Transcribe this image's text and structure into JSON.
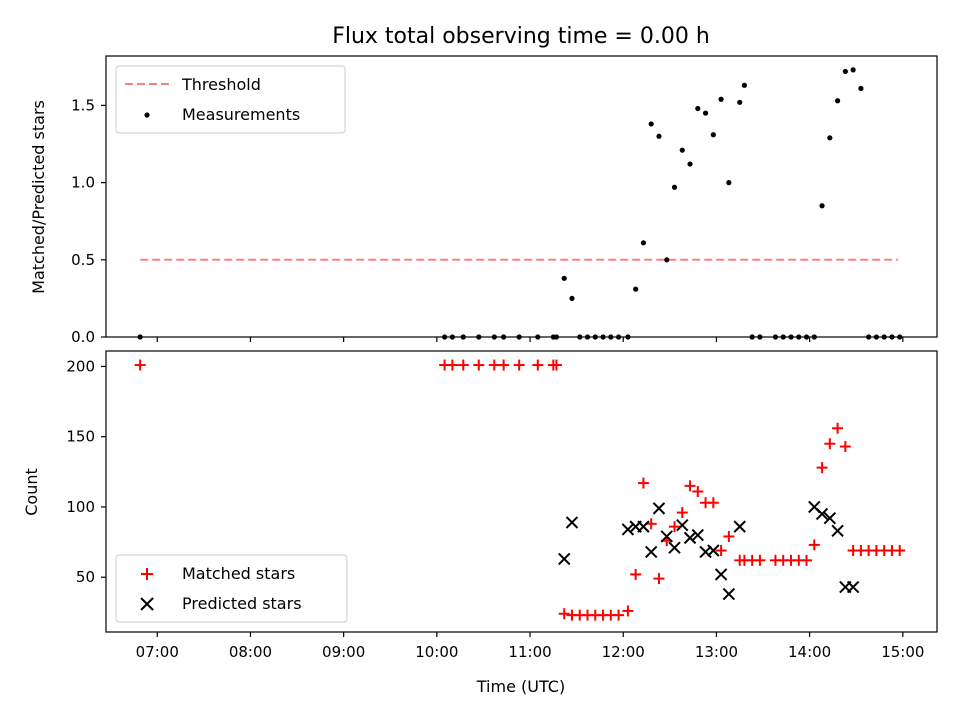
{
  "chart_data": [
    {
      "type": "scatter",
      "title": "Flux total observing time = 0.00 h",
      "ylabel": "Matched/Predicted stars",
      "xlabel": "",
      "xlim": [
        "06:27",
        "15:22"
      ],
      "ylim": [
        0,
        1.82
      ],
      "yticks": [
        0.0,
        0.5,
        1.0,
        1.5
      ],
      "ytick_labels": [
        "0.0",
        "0.5",
        "1.0",
        "1.5"
      ],
      "grid": false,
      "legend_position": "top-left",
      "legend": [
        "Threshold",
        "Measurements"
      ],
      "threshold": {
        "name": "Threshold",
        "x": [
          "06:49",
          "14:57"
        ],
        "y": 0.5,
        "color": "#ff7f7f",
        "style": "dashed"
      },
      "series": [
        {
          "name": "Measurements",
          "marker": "dot",
          "color": "#000000",
          "x": [
            "06:49",
            "10:05",
            "10:10",
            "10:17",
            "10:27",
            "10:37",
            "10:43",
            "10:53",
            "11:05",
            "11:15",
            "11:17",
            "11:22",
            "11:27",
            "11:32",
            "11:37",
            "11:42",
            "11:47",
            "11:52",
            "11:57",
            "12:03",
            "12:08",
            "12:13",
            "12:18",
            "12:23",
            "12:28",
            "12:33",
            "12:38",
            "12:43",
            "12:48",
            "12:53",
            "12:58",
            "13:03",
            "13:08",
            "13:15",
            "13:18",
            "13:23",
            "13:28",
            "13:38",
            "13:43",
            "13:48",
            "13:53",
            "13:58",
            "14:03",
            "14:08",
            "14:13",
            "14:18",
            "14:23",
            "14:28",
            "14:33",
            "14:38",
            "14:43",
            "14:48",
            "14:53",
            "14:58"
          ],
          "y": [
            0,
            0,
            0,
            0,
            0,
            0,
            0,
            0,
            0,
            0,
            0,
            0.38,
            0.25,
            0,
            0,
            0,
            0,
            0,
            0,
            0,
            0.31,
            0.61,
            1.38,
            1.3,
            0.5,
            0.97,
            1.21,
            1.12,
            1.48,
            1.45,
            1.31,
            1.54,
            1.0,
            1.52,
            1.63,
            0,
            0,
            0,
            0,
            0,
            0,
            0,
            0,
            0.85,
            1.29,
            1.53,
            1.72,
            1.73,
            1.61,
            0,
            0,
            0,
            0,
            0
          ]
        }
      ]
    },
    {
      "type": "scatter",
      "title": "",
      "ylabel": "Count",
      "xlabel": "Time (UTC)",
      "xlim": [
        "06:27",
        "15:22"
      ],
      "ylim": [
        11,
        211
      ],
      "yticks": [
        50,
        100,
        150,
        200
      ],
      "ytick_labels": [
        "50",
        "100",
        "150",
        "200"
      ],
      "xticks": [
        "07:00",
        "08:00",
        "09:00",
        "10:00",
        "11:00",
        "12:00",
        "13:00",
        "14:00",
        "15:00"
      ],
      "grid": false,
      "legend_position": "bottom-left",
      "legend": [
        "Matched stars",
        "Predicted stars"
      ],
      "series": [
        {
          "name": "Matched stars",
          "marker": "plus",
          "color": "#ff0000",
          "x": [
            "06:49",
            "10:05",
            "10:10",
            "10:17",
            "10:27",
            "10:37",
            "10:43",
            "10:53",
            "11:05",
            "11:15",
            "11:17",
            "11:22",
            "11:27",
            "11:32",
            "11:37",
            "11:42",
            "11:47",
            "11:52",
            "11:57",
            "12:03",
            "12:08",
            "12:13",
            "12:18",
            "12:23",
            "12:28",
            "12:33",
            "12:38",
            "12:43",
            "12:48",
            "12:53",
            "12:58",
            "13:03",
            "13:08",
            "13:15",
            "13:18",
            "13:23",
            "13:28",
            "13:38",
            "13:43",
            "13:48",
            "13:53",
            "13:58",
            "14:03",
            "14:08",
            "14:13",
            "14:18",
            "14:23",
            "14:28",
            "14:33",
            "14:38",
            "14:43",
            "14:48",
            "14:53",
            "14:58"
          ],
          "y": [
            201,
            201,
            201,
            201,
            201,
            201,
            201,
            201,
            201,
            201,
            201,
            24,
            23,
            23,
            23,
            23,
            23,
            23,
            23,
            26,
            52,
            117,
            88,
            49,
            76,
            86,
            96,
            115,
            111,
            103,
            103,
            69,
            79,
            62,
            62,
            62,
            62,
            62,
            62,
            62,
            62,
            62,
            73,
            128,
            145,
            156,
            143,
            69,
            69,
            69,
            69,
            69,
            69,
            69
          ]
        },
        {
          "name": "Predicted stars",
          "marker": "x",
          "color": "#000000",
          "x": [
            "11:22",
            "11:27",
            "12:03",
            "12:08",
            "12:13",
            "12:18",
            "12:23",
            "12:28",
            "12:33",
            "12:38",
            "12:43",
            "12:48",
            "12:53",
            "12:58",
            "13:03",
            "13:08",
            "13:15",
            "14:03",
            "14:08",
            "14:13",
            "14:18",
            "14:23",
            "14:28"
          ],
          "y": [
            63,
            89,
            84,
            86,
            86,
            68,
            99,
            79,
            71,
            87,
            78,
            80,
            68,
            69,
            52,
            38,
            86,
            100,
            95,
            92,
            83,
            43,
            43
          ]
        }
      ]
    }
  ]
}
